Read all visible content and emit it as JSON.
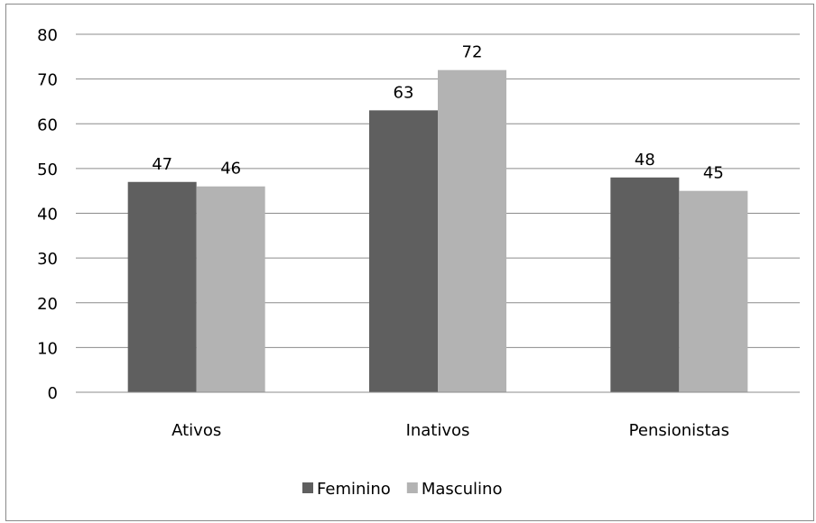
{
  "chart_data": {
    "type": "bar",
    "categories": [
      "Ativos",
      "Inativos",
      "Pensionistas"
    ],
    "series": [
      {
        "name": "Feminino",
        "values": [
          47,
          63,
          48
        ],
        "color": "#5f5f5f"
      },
      {
        "name": "Masculino",
        "values": [
          46,
          72,
          45
        ],
        "color": "#b3b3b3"
      }
    ],
    "ylim": [
      0,
      80
    ],
    "yticks": [
      0,
      10,
      20,
      30,
      40,
      50,
      60,
      70,
      80
    ],
    "grid": true,
    "legend_position": "bottom",
    "data_labels": true,
    "title": "",
    "xlabel": "",
    "ylabel": ""
  }
}
